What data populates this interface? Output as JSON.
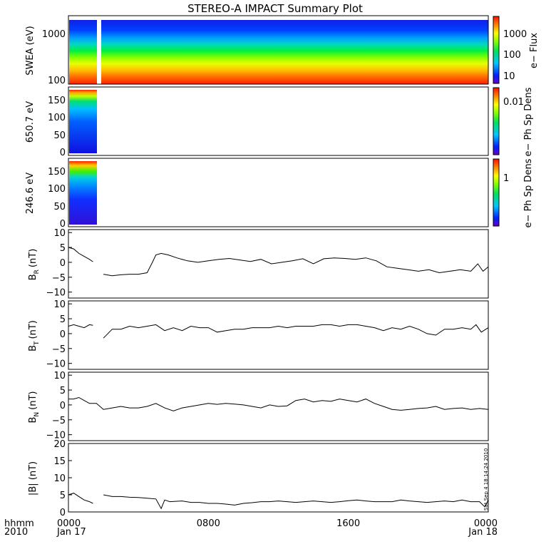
{
  "title": "STEREO-A IMPACT Summary Plot",
  "stamp": "Sat Sep  4 18:14:24 2010",
  "x_axis": {
    "ticks": [
      {
        "hhmm": "0000",
        "date": "Jan 17",
        "hour": 0
      },
      {
        "hhmm": "0800",
        "date": "",
        "hour": 8
      },
      {
        "hhmm": "1600",
        "date": "",
        "hour": 16
      },
      {
        "hhmm": "0000",
        "date": "Jan 18",
        "hour": 24
      }
    ],
    "row1_label": "hhmm",
    "row2_label": "2010",
    "range_hours": [
      0,
      24
    ]
  },
  "chart_data": [
    {
      "type": "heatmap",
      "panel": "swea",
      "ylabel": "SWEA (eV)",
      "yscale": "log",
      "ylim": [
        90,
        2000
      ],
      "yticks": [
        "100",
        "1000"
      ],
      "colorbar": {
        "label": "e− Flux",
        "scale": "log",
        "ticks": [
          "10",
          "100",
          "1000"
        ]
      },
      "data_gap_hours": [
        1.4,
        1.6
      ]
    },
    {
      "type": "heatmap",
      "panel": "pad650",
      "ylabel": "650.7 eV",
      "ylim": [
        0,
        180
      ],
      "yticks": [
        "0",
        "50",
        "100",
        "150"
      ],
      "colorbar": {
        "label": "e− Ph Sp Dens",
        "scale": "log",
        "ticks": [
          "0.01"
        ]
      },
      "data_hours": [
        0,
        1.45
      ]
    },
    {
      "type": "heatmap",
      "panel": "pad246",
      "ylabel": "246.6 eV",
      "ylim": [
        0,
        180
      ],
      "yticks": [
        "0",
        "50",
        "100",
        "150"
      ],
      "colorbar": {
        "label": "e− Ph Sp Dens",
        "scale": "log",
        "ticks": [
          "1"
        ]
      },
      "data_hours": [
        0,
        1.45
      ]
    },
    {
      "type": "line",
      "panel": "br",
      "ylabel_main": "B",
      "ylabel_sub": "R",
      "ylabel_unit": "(nT)",
      "ylim": [
        -12,
        11
      ],
      "yticks": [
        "−10",
        "−5",
        "0",
        "5",
        "10"
      ],
      "x": [
        0,
        0.3,
        0.6,
        0.9,
        1.2,
        1.4,
        1.8,
        2.0,
        2.5,
        3.0,
        3.5,
        4.0,
        4.5,
        4.8,
        5.0,
        5.3,
        5.7,
        6.2,
        6.8,
        7.4,
        8.0,
        8.6,
        9.2,
        9.8,
        10.4,
        11.0,
        11.6,
        12.2,
        12.8,
        13.4,
        14.0,
        14.6,
        15.2,
        15.8,
        16.4,
        17.0,
        17.6,
        18.2,
        18.8,
        19.4,
        20.0,
        20.6,
        21.2,
        21.8,
        22.4,
        23.0,
        23.4,
        23.7,
        24.0
      ],
      "y": [
        5,
        4.5,
        3,
        2,
        1,
        0.2,
        null,
        -4,
        -4.5,
        -4.2,
        -4,
        -4,
        -3.5,
        0,
        2.5,
        3,
        2.5,
        1.5,
        0.5,
        0,
        0.5,
        1,
        1.3,
        0.8,
        0.3,
        1.0,
        -0.5,
        0,
        0.5,
        1.2,
        -0.5,
        1.2,
        1.5,
        1.3,
        1.0,
        1.5,
        0.5,
        -1.5,
        -2,
        -2.5,
        -3,
        -2.5,
        -3.5,
        -3,
        -2.5,
        -3,
        -0.5,
        -3,
        -1.5
      ]
    },
    {
      "type": "line",
      "panel": "bt",
      "ylabel_main": "B",
      "ylabel_sub": "T",
      "ylabel_unit": "(nT)",
      "ylim": [
        -12,
        11
      ],
      "yticks": [
        "−10",
        "−5",
        "0",
        "5",
        "10"
      ],
      "x": [
        0,
        0.3,
        0.6,
        0.9,
        1.2,
        1.4,
        1.8,
        2.0,
        2.5,
        3.0,
        3.5,
        4.0,
        4.5,
        5.0,
        5.5,
        6.0,
        6.5,
        7.0,
        7.5,
        8.0,
        8.5,
        9.0,
        9.5,
        10.0,
        10.5,
        11.0,
        11.5,
        12.0,
        12.5,
        13.0,
        13.5,
        14.0,
        14.5,
        15.0,
        15.5,
        16.0,
        16.5,
        17.0,
        17.5,
        18.0,
        18.5,
        19.0,
        19.5,
        20.0,
        20.5,
        21.0,
        21.5,
        22.0,
        22.5,
        23.0,
        23.3,
        23.6,
        24.0
      ],
      "y": [
        2.5,
        3,
        2.5,
        2,
        3,
        2.8,
        null,
        -1.5,
        1.5,
        1.5,
        2.5,
        2,
        2.5,
        3,
        1,
        2,
        1,
        2.5,
        2,
        2,
        0.5,
        1,
        1.5,
        1.5,
        2,
        2,
        2,
        2.5,
        2,
        2.5,
        2.5,
        2.5,
        3,
        3,
        2.5,
        3,
        3,
        2.5,
        2,
        1,
        2,
        1.5,
        2.5,
        1.5,
        0,
        -0.5,
        1.5,
        1.5,
        2,
        1.5,
        3,
        0.5,
        2
      ]
    },
    {
      "type": "line",
      "panel": "bn",
      "ylabel_main": "B",
      "ylabel_sub": "N",
      "ylabel_unit": "(nT)",
      "ylim": [
        -12,
        11
      ],
      "yticks": [
        "−10",
        "−5",
        "0",
        "5",
        "10"
      ],
      "x": [
        0,
        0.3,
        0.6,
        0.9,
        1.2,
        1.6,
        2.0,
        2.5,
        3.0,
        3.5,
        4.0,
        4.5,
        5.0,
        5.5,
        6.0,
        6.5,
        7.0,
        7.5,
        8.0,
        8.5,
        9.0,
        9.5,
        10.0,
        10.5,
        11.0,
        11.5,
        12.0,
        12.5,
        13.0,
        13.5,
        14.0,
        14.5,
        15.0,
        15.5,
        16.0,
        16.5,
        17.0,
        17.5,
        18.0,
        18.5,
        19.0,
        19.5,
        20.0,
        20.5,
        21.0,
        21.5,
        22.0,
        22.5,
        23.0,
        23.5,
        24.0
      ],
      "y": [
        2,
        2,
        2.5,
        1.5,
        0.5,
        0.5,
        -1.5,
        -1,
        -0.5,
        -1,
        -1,
        -0.5,
        0.5,
        -1,
        -2,
        -1,
        -0.5,
        0,
        0.5,
        0.2,
        0.5,
        0.3,
        0,
        -0.5,
        -1,
        0,
        -0.5,
        -0.3,
        1.5,
        2,
        1,
        1.5,
        1.2,
        2,
        1.5,
        1,
        2,
        0.5,
        -0.5,
        -1.5,
        -1.8,
        -1.5,
        -1.2,
        -1.0,
        -0.5,
        -1.5,
        -1.2,
        -1.0,
        -1.5,
        -1.2,
        -1.5
      ]
    },
    {
      "type": "line",
      "panel": "bmag",
      "ylabel_main": "|B| (nT)",
      "ylim": [
        0,
        20
      ],
      "yticks": [
        "0",
        "5",
        "10",
        "15",
        "20"
      ],
      "x": [
        0,
        0.3,
        0.6,
        0.9,
        1.2,
        1.4,
        1.8,
        2.0,
        2.5,
        3.0,
        3.5,
        4.0,
        4.5,
        5.0,
        5.3,
        5.5,
        5.8,
        6.5,
        7.0,
        7.5,
        8.0,
        8.5,
        9.0,
        9.5,
        10.0,
        10.5,
        11.0,
        11.5,
        12.0,
        12.5,
        13.0,
        13.5,
        14.0,
        14.5,
        15.0,
        15.5,
        16.0,
        16.5,
        17.0,
        17.5,
        18.0,
        18.5,
        19.0,
        19.5,
        20.0,
        20.5,
        21.0,
        21.5,
        22.0,
        22.5,
        23.0,
        23.5,
        23.8,
        24.0
      ],
      "y": [
        5,
        5.5,
        4.5,
        3.5,
        3,
        2.5,
        null,
        5,
        4.5,
        4.5,
        4.3,
        4.2,
        4.0,
        3.8,
        1,
        3.5,
        3,
        3.2,
        2.8,
        2.8,
        2.5,
        2.5,
        2.3,
        2.0,
        2.5,
        2.7,
        3.0,
        3.0,
        3.2,
        3.0,
        2.8,
        3.0,
        3.2,
        3.0,
        2.8,
        3.0,
        3.3,
        3.5,
        3.2,
        3.0,
        3.0,
        3.0,
        3.5,
        3.2,
        3.0,
        2.8,
        3.0,
        3.2,
        3.0,
        3.5,
        3.0,
        3.0,
        1.5,
        3.5
      ]
    }
  ]
}
